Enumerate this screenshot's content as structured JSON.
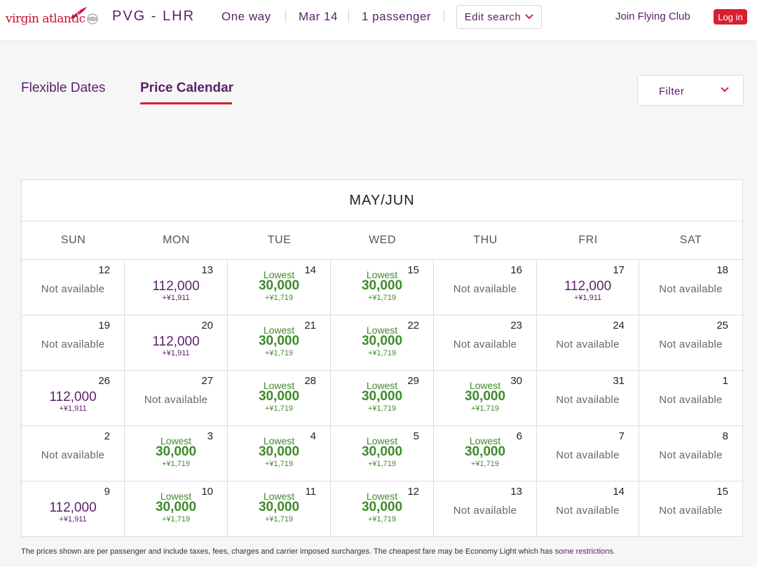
{
  "header": {
    "brand": "virgin atlantic",
    "route": "PVG - LHR",
    "trip_type": "One way",
    "date": "Mar 14",
    "passengers": "1 passenger",
    "edit_search": "Edit search",
    "join_club": "Join Flying Club",
    "login": "Log in"
  },
  "tabs": {
    "flexible": "Flexible Dates",
    "calendar": "Price Calendar"
  },
  "filter": {
    "label": "Filter"
  },
  "calendar": {
    "title": "MAY/JUN",
    "weekdays": [
      "SUN",
      "MON",
      "TUE",
      "WED",
      "THU",
      "FRI",
      "SAT"
    ],
    "weeks": [
      [
        {
          "day": "12",
          "status": "na",
          "text": "Not available"
        },
        {
          "day": "13",
          "status": "high",
          "price": "112,000",
          "tax": "+¥1,911"
        },
        {
          "day": "14",
          "status": "low",
          "label": "Lowest",
          "price": "30,000",
          "tax": "+¥1,719"
        },
        {
          "day": "15",
          "status": "low",
          "label": "Lowest",
          "price": "30,000",
          "tax": "+¥1,719"
        },
        {
          "day": "16",
          "status": "na",
          "text": "Not available"
        },
        {
          "day": "17",
          "status": "high",
          "price": "112,000",
          "tax": "+¥1,911"
        },
        {
          "day": "18",
          "status": "na",
          "text": "Not available"
        }
      ],
      [
        {
          "day": "19",
          "status": "na",
          "text": "Not available"
        },
        {
          "day": "20",
          "status": "high",
          "price": "112,000",
          "tax": "+¥1,911"
        },
        {
          "day": "21",
          "status": "low",
          "label": "Lowest",
          "price": "30,000",
          "tax": "+¥1,719"
        },
        {
          "day": "22",
          "status": "low",
          "label": "Lowest",
          "price": "30,000",
          "tax": "+¥1,719"
        },
        {
          "day": "23",
          "status": "na",
          "text": "Not available"
        },
        {
          "day": "24",
          "status": "na",
          "text": "Not available"
        },
        {
          "day": "25",
          "status": "na",
          "text": "Not available"
        }
      ],
      [
        {
          "day": "26",
          "status": "high",
          "price": "112,000",
          "tax": "+¥1,911"
        },
        {
          "day": "27",
          "status": "na",
          "text": "Not available"
        },
        {
          "day": "28",
          "status": "low",
          "label": "Lowest",
          "price": "30,000",
          "tax": "+¥1,719"
        },
        {
          "day": "29",
          "status": "low",
          "label": "Lowest",
          "price": "30,000",
          "tax": "+¥1,719"
        },
        {
          "day": "30",
          "status": "low",
          "label": "Lowest",
          "price": "30,000",
          "tax": "+¥1,719"
        },
        {
          "day": "31",
          "status": "na",
          "text": "Not available"
        },
        {
          "day": "1",
          "status": "na",
          "text": "Not available"
        }
      ],
      [
        {
          "day": "2",
          "status": "na",
          "text": "Not available"
        },
        {
          "day": "3",
          "status": "low",
          "label": "Lowest",
          "price": "30,000",
          "tax": "+¥1,719"
        },
        {
          "day": "4",
          "status": "low",
          "label": "Lowest",
          "price": "30,000",
          "tax": "+¥1,719"
        },
        {
          "day": "5",
          "status": "low",
          "label": "Lowest",
          "price": "30,000",
          "tax": "+¥1,719"
        },
        {
          "day": "6",
          "status": "low",
          "label": "Lowest",
          "price": "30,000",
          "tax": "+¥1,719"
        },
        {
          "day": "7",
          "status": "na",
          "text": "Not available"
        },
        {
          "day": "8",
          "status": "na",
          "text": "Not available"
        }
      ],
      [
        {
          "day": "9",
          "status": "high",
          "price": "112,000",
          "tax": "+¥1,911"
        },
        {
          "day": "10",
          "status": "low",
          "label": "Lowest",
          "price": "30,000",
          "tax": "+¥1,719"
        },
        {
          "day": "11",
          "status": "low",
          "label": "Lowest",
          "price": "30,000",
          "tax": "+¥1,719"
        },
        {
          "day": "12",
          "status": "low",
          "label": "Lowest",
          "price": "30,000",
          "tax": "+¥1,719"
        },
        {
          "day": "13",
          "status": "na",
          "text": "Not available"
        },
        {
          "day": "14",
          "status": "na",
          "text": "Not available"
        },
        {
          "day": "15",
          "status": "na",
          "text": "Not available"
        }
      ]
    ]
  },
  "footnote": {
    "text": "The prices shown are per passenger and include taxes, fees, charges and carrier imposed surcharges. The cheapest fare may be Economy Light which has ",
    "link": "some restrictions",
    "end": "."
  },
  "colors": {
    "brand_purple": "#5b1f69",
    "accent_red": "#d7202f",
    "lowest_green": "#3f8a2b"
  },
  "icons": [
    "virgin-logo-icon",
    "alliance-icon",
    "chevron-down-icon"
  ]
}
